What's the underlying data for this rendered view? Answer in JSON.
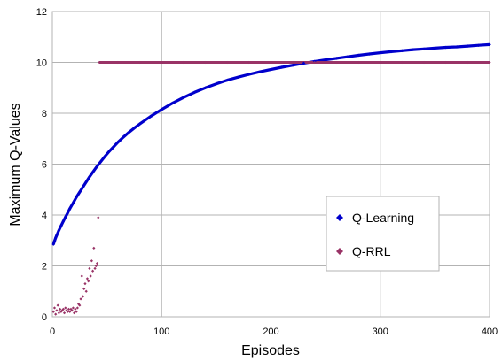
{
  "chart_data": {
    "type": "scatter",
    "xlabel": "Episodes",
    "ylabel": "Maximum Q-Values",
    "xlim": [
      0,
      400
    ],
    "ylim": [
      0,
      12
    ],
    "x_ticks": [
      0,
      100,
      200,
      300,
      400
    ],
    "y_ticks": [
      0,
      2,
      4,
      6,
      8,
      10,
      12
    ],
    "grid": true,
    "legend_position": "right",
    "series": [
      {
        "name": "Q-Learning",
        "color": "#0000cc",
        "marker": "diamond",
        "points": [
          [
            1,
            2.85
          ],
          [
            2,
            2.98
          ],
          [
            3,
            3.1
          ],
          [
            4,
            3.2
          ],
          [
            5,
            3.3
          ],
          [
            6,
            3.4
          ],
          [
            8,
            3.58
          ],
          [
            10,
            3.75
          ],
          [
            12,
            3.92
          ],
          [
            14,
            4.08
          ],
          [
            16,
            4.25
          ],
          [
            18,
            4.4
          ],
          [
            20,
            4.55
          ],
          [
            22,
            4.7
          ],
          [
            25,
            4.9
          ],
          [
            28,
            5.1
          ],
          [
            31,
            5.3
          ],
          [
            34,
            5.5
          ],
          [
            37,
            5.68
          ],
          [
            40,
            5.86
          ],
          [
            44,
            6.08
          ],
          [
            48,
            6.3
          ],
          [
            52,
            6.5
          ],
          [
            56,
            6.68
          ],
          [
            60,
            6.86
          ],
          [
            65,
            7.06
          ],
          [
            70,
            7.25
          ],
          [
            75,
            7.42
          ],
          [
            80,
            7.58
          ],
          [
            90,
            7.88
          ],
          [
            100,
            8.15
          ],
          [
            110,
            8.4
          ],
          [
            120,
            8.62
          ],
          [
            130,
            8.82
          ],
          [
            140,
            9.0
          ],
          [
            150,
            9.16
          ],
          [
            160,
            9.3
          ],
          [
            170,
            9.42
          ],
          [
            180,
            9.53
          ],
          [
            190,
            9.63
          ],
          [
            200,
            9.72
          ],
          [
            210,
            9.81
          ],
          [
            220,
            9.89
          ],
          [
            230,
            9.97
          ],
          [
            240,
            10.04
          ],
          [
            250,
            10.1
          ],
          [
            260,
            10.16
          ],
          [
            270,
            10.22
          ],
          [
            280,
            10.28
          ],
          [
            290,
            10.33
          ],
          [
            300,
            10.38
          ],
          [
            310,
            10.42
          ],
          [
            320,
            10.46
          ],
          [
            330,
            10.5
          ],
          [
            340,
            10.53
          ],
          [
            350,
            10.56
          ],
          [
            360,
            10.59
          ],
          [
            370,
            10.61
          ],
          [
            380,
            10.64
          ],
          [
            390,
            10.67
          ],
          [
            400,
            10.7
          ]
        ]
      },
      {
        "name": "Q-RRL",
        "color": "#993366",
        "marker": "diamond",
        "points": [
          [
            1,
            0.2
          ],
          [
            2,
            0.35
          ],
          [
            3,
            0.1
          ],
          [
            4,
            0.25
          ],
          [
            5,
            0.45
          ],
          [
            6,
            0.15
          ],
          [
            7,
            0.3
          ],
          [
            8,
            0.2
          ],
          [
            9,
            0.25
          ],
          [
            10,
            0.3
          ],
          [
            11,
            0.15
          ],
          [
            12,
            0.35
          ],
          [
            13,
            0.25
          ],
          [
            14,
            0.2
          ],
          [
            15,
            0.3
          ],
          [
            16,
            0.2
          ],
          [
            17,
            0.3
          ],
          [
            18,
            0.25
          ],
          [
            19,
            0.35
          ],
          [
            20,
            0.15
          ],
          [
            21,
            0.3
          ],
          [
            22,
            0.2
          ],
          [
            23,
            0.35
          ],
          [
            24,
            0.5
          ],
          [
            25,
            0.45
          ],
          [
            26,
            0.7
          ],
          [
            27,
            1.6
          ],
          [
            28,
            0.8
          ],
          [
            29,
            1.1
          ],
          [
            30,
            1.3
          ],
          [
            31,
            1.0
          ],
          [
            32,
            1.5
          ],
          [
            33,
            1.4
          ],
          [
            34,
            1.9
          ],
          [
            35,
            1.6
          ],
          [
            36,
            2.2
          ],
          [
            37,
            1.8
          ],
          [
            38,
            2.7
          ],
          [
            39,
            1.9
          ],
          [
            40,
            2.0
          ],
          [
            41,
            2.1
          ],
          [
            42,
            3.9
          ],
          [
            43,
            10.0
          ],
          [
            60,
            10.0
          ],
          [
            80,
            10.0
          ],
          [
            100,
            10.0
          ],
          [
            120,
            10.0
          ],
          [
            140,
            10.0
          ],
          [
            160,
            10.0
          ],
          [
            180,
            10.0
          ],
          [
            200,
            10.0
          ],
          [
            220,
            10.0
          ],
          [
            240,
            10.0
          ],
          [
            260,
            10.0
          ],
          [
            280,
            10.0
          ],
          [
            300,
            10.0
          ],
          [
            320,
            10.0
          ],
          [
            340,
            10.0
          ],
          [
            360,
            10.0
          ],
          [
            380,
            10.0
          ],
          [
            400,
            10.0
          ]
        ]
      }
    ]
  }
}
